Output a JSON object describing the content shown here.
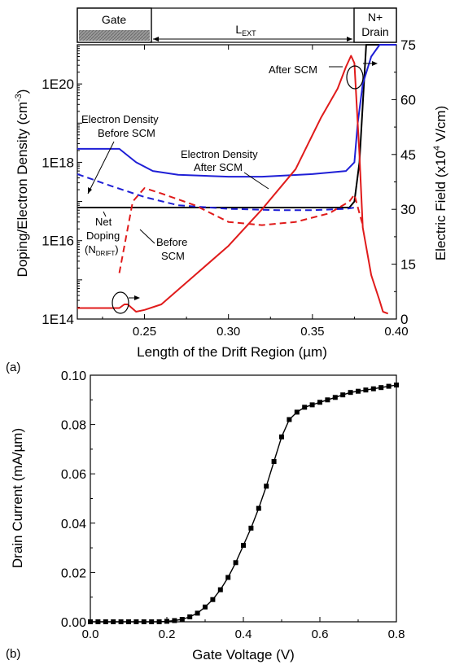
{
  "chart_data": [
    {
      "panel": "(a)",
      "type": "line",
      "xlabel": "Length of the Drift Region (µm)",
      "ylabel_left": "Doping/Electron Density (cm⁻³)",
      "ylabel_left_base": "Doping/Electron Density (cm",
      "ylabel_left_exp": "-3",
      "ylabel_left_close": ")",
      "ylabel_right": "Electric Field (x10⁴ V/cm)",
      "ylabel_right_pre": "Electric Field (x10",
      "ylabel_right_exp": "4",
      "ylabel_right_post": " V/cm)",
      "xlim": [
        0.21,
        0.4
      ],
      "ylim_left": [
        100000000000000.0,
        1e+21
      ],
      "ylim_left_scale": "log",
      "ylim_right": [
        0,
        75
      ],
      "x_ticks": [
        0.25,
        0.3,
        0.35,
        0.4
      ],
      "x_tick_labels": [
        "0.25",
        "0.30",
        "0.35",
        "0.40"
      ],
      "y_left_ticks": [
        100000000000000.0,
        1e+16,
        1e+18,
        1e+20
      ],
      "y_left_tick_labels": [
        "1E14",
        "1E16",
        "1E18",
        "1E20"
      ],
      "y_right_ticks": [
        0,
        15,
        30,
        45,
        60,
        75
      ],
      "y_right_tick_labels": [
        "0",
        "15",
        "30",
        "45",
        "60",
        "75"
      ],
      "regions": [
        {
          "label": "Gate",
          "x_start": 0.21,
          "x_end": 0.258
        },
        {
          "label": "L",
          "label_sub": "EXT",
          "x_start": 0.258,
          "x_end": 0.3755
        },
        {
          "label_line1": "N+",
          "label_line2": "Drain",
          "x_start": 0.3755,
          "x_end": 0.4
        }
      ],
      "series": [
        {
          "color": "#000000",
          "axis": "left",
          "style": "solid",
          "x": [
            0.21,
            0.25,
            0.3,
            0.35,
            0.372,
            0.375,
            0.378,
            0.382,
            0.4
          ],
          "y": [
            7e+16,
            7e+16,
            7e+16,
            7e+16,
            7e+16,
            1e+17,
            1e+18,
            1e+21,
            1e+21
          ]
        },
        {
          "color": "#1f1fd6",
          "axis": "left",
          "style": "solid",
          "x": [
            0.21,
            0.235,
            0.245,
            0.255,
            0.27,
            0.3,
            0.32,
            0.35,
            0.37,
            0.375,
            0.377,
            0.38,
            0.385,
            0.39,
            0.395,
            0.4
          ],
          "y": [
            2.2e+18,
            2.2e+18,
            1e+18,
            6e+17,
            4.8e+17,
            4.3e+17,
            4.3e+17,
            5e+17,
            6e+17,
            1e+18,
            1e+19,
            1e+20,
            5e+20,
            1e+21,
            1e+21,
            1e+21
          ]
        },
        {
          "color": "#1f1fd6",
          "axis": "left",
          "style": "dashed",
          "x": [
            0.21,
            0.23,
            0.25,
            0.27,
            0.3,
            0.33,
            0.35,
            0.37,
            0.375
          ],
          "y": [
            5e+17,
            2.5e+17,
            1.3e+17,
            8e+16,
            6.5e+16,
            6e+16,
            6e+16,
            6.5e+16,
            7e+16
          ]
        },
        {
          "color": "#e01b1b",
          "axis": "left",
          "style": "dashed",
          "x": [
            0.235,
            0.243,
            0.25,
            0.26,
            0.28,
            0.3,
            0.32,
            0.34,
            0.36,
            0.372,
            0.375,
            0.378,
            0.38
          ],
          "y": [
            1500000000000000.0,
            1e+17,
            2.2e+17,
            1.6e+17,
            8e+16,
            3e+16,
            2.5e+16,
            3e+16,
            5e+16,
            1e+17,
            1.5e+17,
            5e+16,
            2.5e+16
          ]
        },
        {
          "color": "#e01b1b",
          "axis": "right",
          "style": "solid",
          "x": [
            0.21,
            0.235,
            0.238,
            0.24,
            0.245,
            0.25,
            0.26,
            0.28,
            0.3,
            0.32,
            0.34,
            0.355,
            0.365,
            0.37,
            0.373,
            0.375,
            0.378,
            0.38,
            0.385,
            0.39,
            0.392,
            0.395
          ],
          "y": [
            3,
            3,
            4,
            4,
            2,
            2.5,
            4,
            12,
            20,
            30,
            41,
            55,
            63,
            69,
            72,
            70,
            45,
            25,
            12,
            5,
            2,
            1.5
          ]
        }
      ],
      "annotations": [
        {
          "text": "After SCM"
        },
        {
          "line1": "Electron Density",
          "line2": "Before SCM"
        },
        {
          "line1": "Electron Density",
          "line2": "After SCM"
        },
        {
          "line1": "Net",
          "line2": "Doping",
          "line3_pre": "(N",
          "line3_sub": "DRIFT",
          "line3_post": ")"
        },
        {
          "line1": "Before",
          "line2": "SCM"
        }
      ]
    },
    {
      "panel": "(b)",
      "type": "line",
      "xlabel": "Gate Voltage (V)",
      "ylabel": "Drain Current (mA/µm)",
      "xlim": [
        0.0,
        0.8
      ],
      "ylim": [
        0.0,
        0.1
      ],
      "x_ticks": [
        0.0,
        0.2,
        0.4,
        0.6,
        0.8
      ],
      "x_tick_labels": [
        "0.0",
        "0.2",
        "0.4",
        "0.6",
        "0.8"
      ],
      "y_ticks": [
        0.0,
        0.02,
        0.04,
        0.06,
        0.08,
        0.1
      ],
      "y_tick_labels": [
        "0.00",
        "0.02",
        "0.04",
        "0.06",
        "0.08",
        "0.10"
      ],
      "series": [
        {
          "color": "#000000",
          "marker": "square",
          "x": [
            0.0,
            0.02,
            0.04,
            0.06,
            0.08,
            0.1,
            0.12,
            0.14,
            0.16,
            0.18,
            0.2,
            0.22,
            0.24,
            0.26,
            0.28,
            0.3,
            0.32,
            0.34,
            0.36,
            0.38,
            0.4,
            0.42,
            0.44,
            0.46,
            0.48,
            0.5,
            0.52,
            0.54,
            0.56,
            0.58,
            0.6,
            0.62,
            0.64,
            0.66,
            0.68,
            0.7,
            0.72,
            0.74,
            0.76,
            0.78,
            0.8
          ],
          "y": [
            0.0,
            0.0,
            0.0,
            0.0,
            0.0,
            0.0,
            0.0,
            0.0,
            0.0,
            0.0,
            0.0002,
            0.0005,
            0.001,
            0.002,
            0.0035,
            0.006,
            0.009,
            0.013,
            0.018,
            0.024,
            0.031,
            0.038,
            0.046,
            0.055,
            0.065,
            0.075,
            0.082,
            0.085,
            0.087,
            0.088,
            0.089,
            0.09,
            0.091,
            0.092,
            0.093,
            0.0935,
            0.094,
            0.0945,
            0.095,
            0.0955,
            0.096
          ]
        }
      ]
    }
  ]
}
